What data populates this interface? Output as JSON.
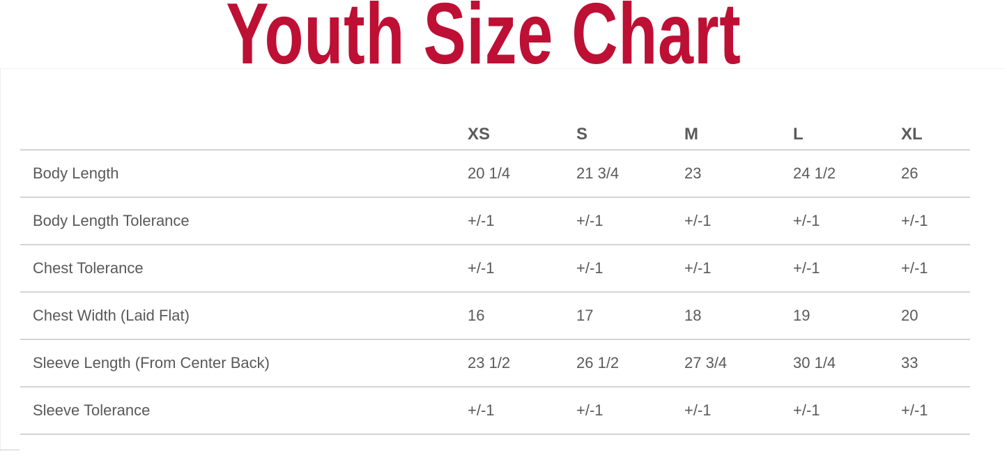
{
  "title": "Youth Size Chart",
  "colors": {
    "title": "#BE0F34",
    "text": "#595959",
    "rule": "#d4d4d4"
  },
  "table": {
    "headers": [
      "",
      "XS",
      "S",
      "M",
      "L",
      "XL"
    ],
    "rows": [
      {
        "label": "Body Length",
        "values": [
          "20 1/4",
          "21 3/4",
          "23",
          "24 1/2",
          "26"
        ]
      },
      {
        "label": "Body Length Tolerance",
        "values": [
          "+/-1",
          "+/-1",
          "+/-1",
          "+/-1",
          "+/-1"
        ]
      },
      {
        "label": "Chest Tolerance",
        "values": [
          "+/-1",
          "+/-1",
          "+/-1",
          "+/-1",
          "+/-1"
        ]
      },
      {
        "label": "Chest Width (Laid Flat)",
        "values": [
          "16",
          "17",
          "18",
          "19",
          "20"
        ]
      },
      {
        "label": "Sleeve Length (From Center Back)",
        "values": [
          "23 1/2",
          "26 1/2",
          "27 3/4",
          "30 1/4",
          "33"
        ]
      },
      {
        "label": "Sleeve Tolerance",
        "values": [
          "+/-1",
          "+/-1",
          "+/-1",
          "+/-1",
          "+/-1"
        ]
      }
    ]
  }
}
